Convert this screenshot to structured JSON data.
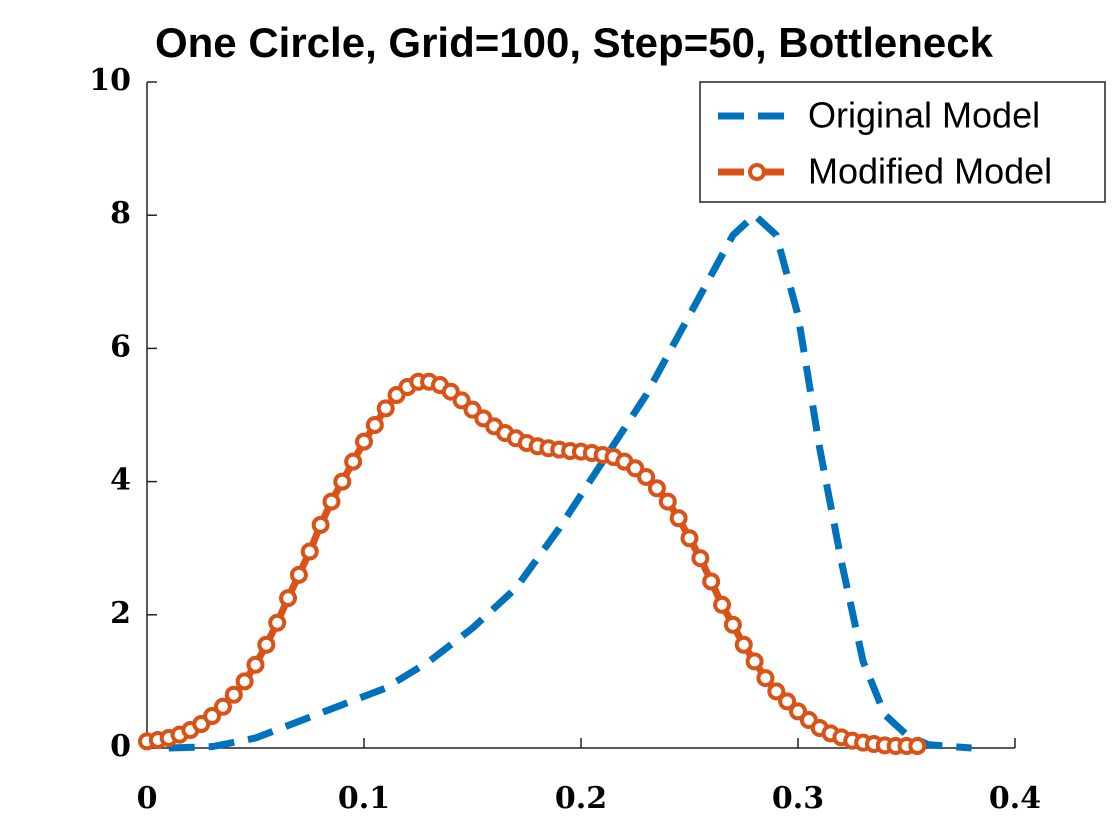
{
  "chart_data": {
    "type": "line",
    "title": "One Circle, Grid=100, Step=50, Bottleneck",
    "xlim": [
      0,
      0.4
    ],
    "xticks": [
      0,
      0.1,
      0.2,
      0.3,
      0.4
    ],
    "ylim": [
      0,
      10
    ],
    "yticks": [
      0,
      2,
      4,
      6,
      8,
      10
    ],
    "grid": false,
    "legend": "upper right",
    "series": [
      {
        "name": "Original Model",
        "color": "#0072bd",
        "style": "dashed",
        "marker": "none",
        "x": [
          0.01,
          0.03,
          0.05,
          0.07,
          0.09,
          0.11,
          0.13,
          0.15,
          0.17,
          0.19,
          0.21,
          0.23,
          0.25,
          0.27,
          0.28,
          0.29,
          0.3,
          0.31,
          0.32,
          0.33,
          0.34,
          0.35,
          0.36,
          0.38
        ],
        "values": [
          0,
          0.02,
          0.15,
          0.4,
          0.65,
          0.9,
          1.3,
          1.8,
          2.4,
          3.3,
          4.3,
          5.3,
          6.5,
          7.7,
          8.0,
          7.7,
          6.5,
          4.5,
          2.8,
          1.3,
          0.5,
          0.2,
          0.05,
          0
        ]
      },
      {
        "name": "Modified Model",
        "color": "#d95319",
        "style": "dashed",
        "marker": "circle",
        "x": [
          0,
          0.005,
          0.01,
          0.015,
          0.02,
          0.025,
          0.03,
          0.035,
          0.04,
          0.045,
          0.05,
          0.055,
          0.06,
          0.065,
          0.07,
          0.075,
          0.08,
          0.085,
          0.09,
          0.095,
          0.1,
          0.105,
          0.11,
          0.115,
          0.12,
          0.125,
          0.13,
          0.135,
          0.14,
          0.145,
          0.15,
          0.155,
          0.16,
          0.165,
          0.17,
          0.175,
          0.18,
          0.185,
          0.19,
          0.195,
          0.2,
          0.205,
          0.21,
          0.215,
          0.22,
          0.225,
          0.23,
          0.235,
          0.24,
          0.245,
          0.25,
          0.255,
          0.26,
          0.265,
          0.27,
          0.275,
          0.28,
          0.285,
          0.29,
          0.295,
          0.3,
          0.305,
          0.31,
          0.315,
          0.32,
          0.325,
          0.33,
          0.335,
          0.34,
          0.345,
          0.35,
          0.355
        ],
        "values": [
          0.1,
          0.12,
          0.15,
          0.2,
          0.27,
          0.36,
          0.48,
          0.62,
          0.8,
          1.0,
          1.25,
          1.55,
          1.88,
          2.25,
          2.6,
          2.95,
          3.35,
          3.7,
          4.0,
          4.3,
          4.6,
          4.85,
          5.1,
          5.3,
          5.42,
          5.5,
          5.5,
          5.45,
          5.35,
          5.22,
          5.08,
          4.95,
          4.83,
          4.73,
          4.65,
          4.58,
          4.53,
          4.5,
          4.48,
          4.46,
          4.45,
          4.43,
          4.4,
          4.37,
          4.3,
          4.2,
          4.07,
          3.9,
          3.7,
          3.45,
          3.15,
          2.85,
          2.5,
          2.15,
          1.85,
          1.55,
          1.3,
          1.05,
          0.85,
          0.7,
          0.55,
          0.42,
          0.3,
          0.22,
          0.16,
          0.11,
          0.08,
          0.06,
          0.04,
          0.03,
          0.03,
          0.03
        ]
      }
    ]
  }
}
